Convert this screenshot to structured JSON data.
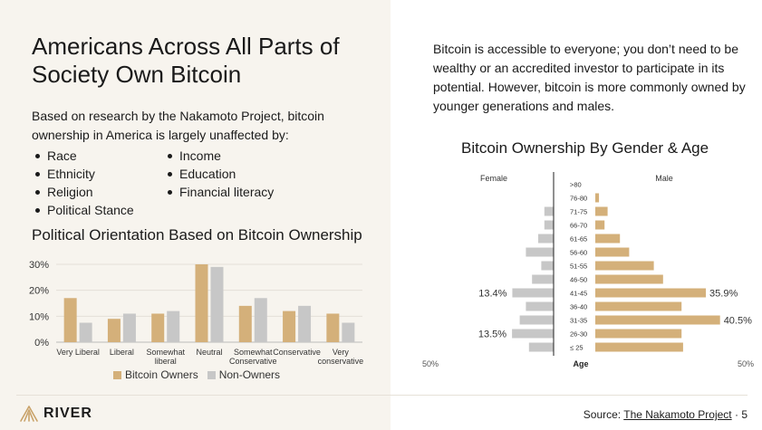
{
  "slide": {
    "title": "Americans Across All Parts of Society Own Bitcoin",
    "intro": "Based on research by the Nakamoto Project, bitcoin ownership in America is largely unaffected by:",
    "bullets_col1": [
      "Race",
      "Ethnicity",
      "Religion",
      "Political Stance"
    ],
    "bullets_col2": [
      "Income",
      "Education",
      "Financial literacy"
    ],
    "right_paragraph": "Bitcoin is accessible to everyone; you don’t need to be wealthy or an accredited investor to participate in its potential. However, bitcoin is more commonly owned by younger generations and males.",
    "logo_text": "RIVER",
    "source_label": "Source:",
    "source_link": "The Nakamoto Project",
    "page_number": "· 5"
  },
  "colors": {
    "owners": "#d4b07a",
    "non_owners": "#c7c7c7",
    "male": "#d4b07a",
    "female": "#c7c7c7",
    "background_left": "#f7f4ee"
  },
  "chart_data": [
    {
      "type": "bar",
      "title": "Political Orientation Based on Bitcoin Ownership",
      "categories": [
        "Very Liberal",
        "Liberal",
        "Somewhat liberal",
        "Neutral",
        "Somewhat Conservative",
        "Conservative",
        "Very conservative"
      ],
      "series": [
        {
          "name": "Bitcoin Owners",
          "values": [
            17,
            9,
            11,
            30,
            14,
            12,
            11
          ]
        },
        {
          "name": "Non-Owners",
          "values": [
            7.5,
            11,
            12,
            29,
            17,
            14,
            7.5
          ]
        }
      ],
      "yticks": [
        "0%",
        "10%",
        "20%",
        "30%"
      ],
      "ylim": [
        0,
        30
      ],
      "legend": "bottom"
    },
    {
      "type": "bar",
      "orientation": "horizontal-pyramid",
      "title": "Bitcoin Ownership By Gender & Age",
      "left_label": "Female",
      "right_label": "Male",
      "center_label": "Age",
      "axis_left_label": "50%",
      "axis_right_label": "50%",
      "xlim": [
        0,
        50
      ],
      "categories": [
        ">80",
        "76-80",
        "71-75",
        "66-70",
        "61-65",
        "56-60",
        "51-55",
        "46-50",
        "41-45",
        "36-40",
        "31-35",
        "26-30",
        "≤ 25"
      ],
      "female": [
        0,
        0,
        3,
        3,
        5,
        9,
        4,
        7,
        13.4,
        9,
        11,
        13.5,
        8
      ],
      "male": [
        0,
        1.2,
        4,
        3,
        8,
        11,
        19,
        22,
        35.9,
        28,
        40.5,
        28,
        28.5
      ],
      "annotations": [
        {
          "category": "41-45",
          "side": "female",
          "text": "13.4%"
        },
        {
          "category": "41-45",
          "side": "male",
          "text": "35.9%"
        },
        {
          "category": "31-35",
          "side": "male",
          "text": "40.5%"
        },
        {
          "category": "26-30",
          "side": "female",
          "text": "13.5%"
        }
      ]
    }
  ]
}
